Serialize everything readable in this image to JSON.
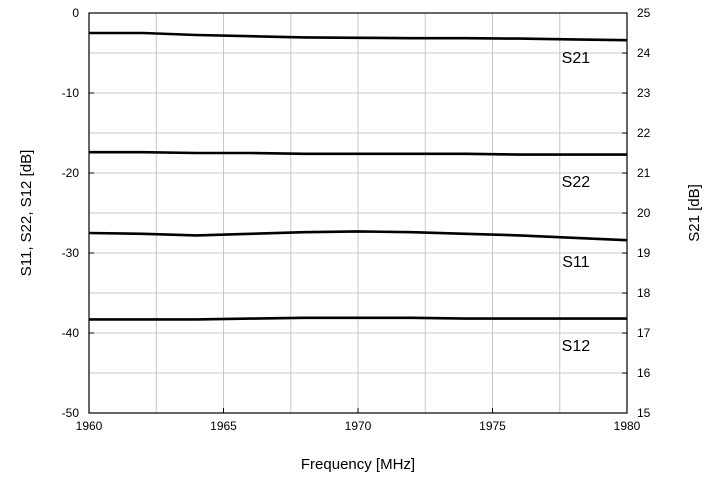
{
  "chart_data": {
    "type": "line",
    "title": "",
    "xlabel": "Frequency [MHz]",
    "ylabel_left": "S11, S22, S12 [dB]",
    "ylabel_right": "S21 [dB]",
    "xlim": [
      1960,
      1980
    ],
    "ylim_left": [
      -50,
      0
    ],
    "ylim_right": [
      15,
      25
    ],
    "grid": true,
    "x_ticks": [
      1960,
      1965,
      1970,
      1975,
      1980
    ],
    "x_tick_labels": [
      "1960",
      "1965",
      "1970",
      "1975",
      "1980"
    ],
    "x_minor_step": 2.5,
    "y_left_ticks": [
      0,
      -10,
      -20,
      -30,
      -40,
      -50
    ],
    "y_left_tick_labels": [
      "0",
      "-10",
      "-20",
      "-30",
      "-40",
      "-50"
    ],
    "y_left_minor_step": 5,
    "y_right_ticks": [
      25,
      24,
      23,
      22,
      21,
      20,
      19,
      18,
      17,
      16,
      15
    ],
    "y_right_tick_labels": [
      "25",
      "24",
      "23",
      "22",
      "21",
      "20",
      "19",
      "18",
      "17",
      "16",
      "15"
    ],
    "x": [
      1960,
      1962,
      1964,
      1966,
      1968,
      1970,
      1972,
      1974,
      1976,
      1978,
      1980
    ],
    "series": [
      {
        "name": "S21",
        "axis": "right",
        "values": [
          24.5,
          24.5,
          24.45,
          24.42,
          24.39,
          24.38,
          24.37,
          24.37,
          24.36,
          24.34,
          24.32
        ]
      },
      {
        "name": "S22",
        "axis": "left",
        "values": [
          -17.4,
          -17.4,
          -17.5,
          -17.5,
          -17.6,
          -17.6,
          -17.6,
          -17.6,
          -17.7,
          -17.7,
          -17.7
        ]
      },
      {
        "name": "S11",
        "axis": "left",
        "values": [
          -27.5,
          -27.6,
          -27.8,
          -27.6,
          -27.4,
          -27.3,
          -27.4,
          -27.6,
          -27.8,
          -28.1,
          -28.4
        ]
      },
      {
        "name": "S12",
        "axis": "left",
        "values": [
          -38.3,
          -38.3,
          -38.3,
          -38.2,
          -38.1,
          -38.1,
          -38.1,
          -38.2,
          -38.2,
          -38.2,
          -38.2
        ]
      }
    ],
    "series_labels": [
      {
        "text": "S21",
        "x": 1978.1,
        "y": 23.9,
        "axis": "right"
      },
      {
        "text": "S22",
        "x": 1978.1,
        "y": -21.0,
        "axis": "left"
      },
      {
        "text": "S11",
        "x": 1978.1,
        "y": -31.0,
        "axis": "left"
      },
      {
        "text": "S12",
        "x": 1978.1,
        "y": -41.5,
        "axis": "left"
      }
    ],
    "colors": {
      "line": "#000000",
      "grid": "#c8c8c8",
      "frame": "#000000"
    }
  }
}
